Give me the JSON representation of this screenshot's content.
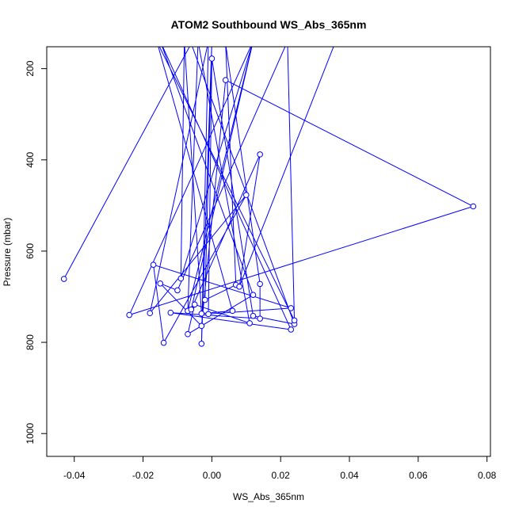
{
  "chart_data": {
    "type": "line",
    "title": "ATOM2 Southbound WS_Abs_365nm",
    "xlabel": "WS_Abs_365nm",
    "ylabel": "Pressure (mbar)",
    "xlim": [
      -0.048,
      0.081
    ],
    "ylim": [
      1050,
      152
    ],
    "y_reversed": true,
    "x_ticks": [
      -0.04,
      -0.02,
      0.0,
      0.02,
      0.04,
      0.06,
      0.08
    ],
    "x_tick_labels": [
      "-0.04",
      "-0.02",
      "0.00",
      "0.02",
      "0.04",
      "0.06",
      "0.08"
    ],
    "y_ticks": [
      200,
      400,
      600,
      800,
      1000
    ],
    "y_tick_labels": [
      "200",
      "400",
      "600",
      "800",
      "1000"
    ],
    "grid": false,
    "series": [
      {
        "color": "#0000ff",
        "marker": "open-circle",
        "points": [
          {
            "x": -0.043,
            "y": 661
          },
          {
            "x": -0.006,
            "y": 145
          },
          {
            "x": 0.024,
            "y": 760
          },
          {
            "x": 0.012,
            "y": 742
          },
          {
            "x": 0.0,
            "y": 178
          },
          {
            "x": -0.001,
            "y": 738
          },
          {
            "x": 0.023,
            "y": 725
          },
          {
            "x": -0.017,
            "y": 630
          },
          {
            "x": -0.014,
            "y": 801
          },
          {
            "x": 0.01,
            "y": 477
          },
          {
            "x": -0.018,
            "y": 736
          },
          {
            "x": -0.001,
            "y": 140
          },
          {
            "x": -0.003,
            "y": 803
          },
          {
            "x": 0.0,
            "y": 140
          },
          {
            "x": -0.002,
            "y": 707
          },
          {
            "x": 0.007,
            "y": 674
          },
          {
            "x": 0.004,
            "y": 145
          },
          {
            "x": 0.014,
            "y": 672
          },
          {
            "x": 0.014,
            "y": 748
          },
          {
            "x": -0.012,
            "y": 735
          },
          {
            "x": 0.023,
            "y": 772
          },
          {
            "x": -0.015,
            "y": 140
          },
          {
            "x": 0.012,
            "y": 696
          },
          {
            "x": -0.007,
            "y": 782
          },
          {
            "x": -0.005,
            "y": 717
          },
          {
            "x": 0.011,
            "y": 758
          },
          {
            "x": -0.004,
            "y": 140
          },
          {
            "x": -0.007,
            "y": 731
          },
          {
            "x": 0.012,
            "y": 140
          },
          {
            "x": -0.009,
            "y": 660
          },
          {
            "x": -0.008,
            "y": 140
          },
          {
            "x": -0.003,
            "y": 737
          },
          {
            "x": 0.006,
            "y": 731
          },
          {
            "x": -0.016,
            "y": 140
          },
          {
            "x": 0.024,
            "y": 752
          },
          {
            "x": 0.022,
            "y": 140
          },
          {
            "x": -0.01,
            "y": 686
          },
          {
            "x": -0.015,
            "y": 671
          },
          {
            "x": -0.003,
            "y": 764
          },
          {
            "x": 0.004,
            "y": 225
          },
          {
            "x": 0.076,
            "y": 502
          },
          {
            "x": -0.024,
            "y": 740
          },
          {
            "x": 0.012,
            "y": 140
          },
          {
            "x": -0.006,
            "y": 728
          },
          {
            "x": 0.014,
            "y": 388
          },
          {
            "x": 0.008,
            "y": 678
          },
          {
            "x": 0.036,
            "y": 140
          }
        ]
      }
    ]
  }
}
